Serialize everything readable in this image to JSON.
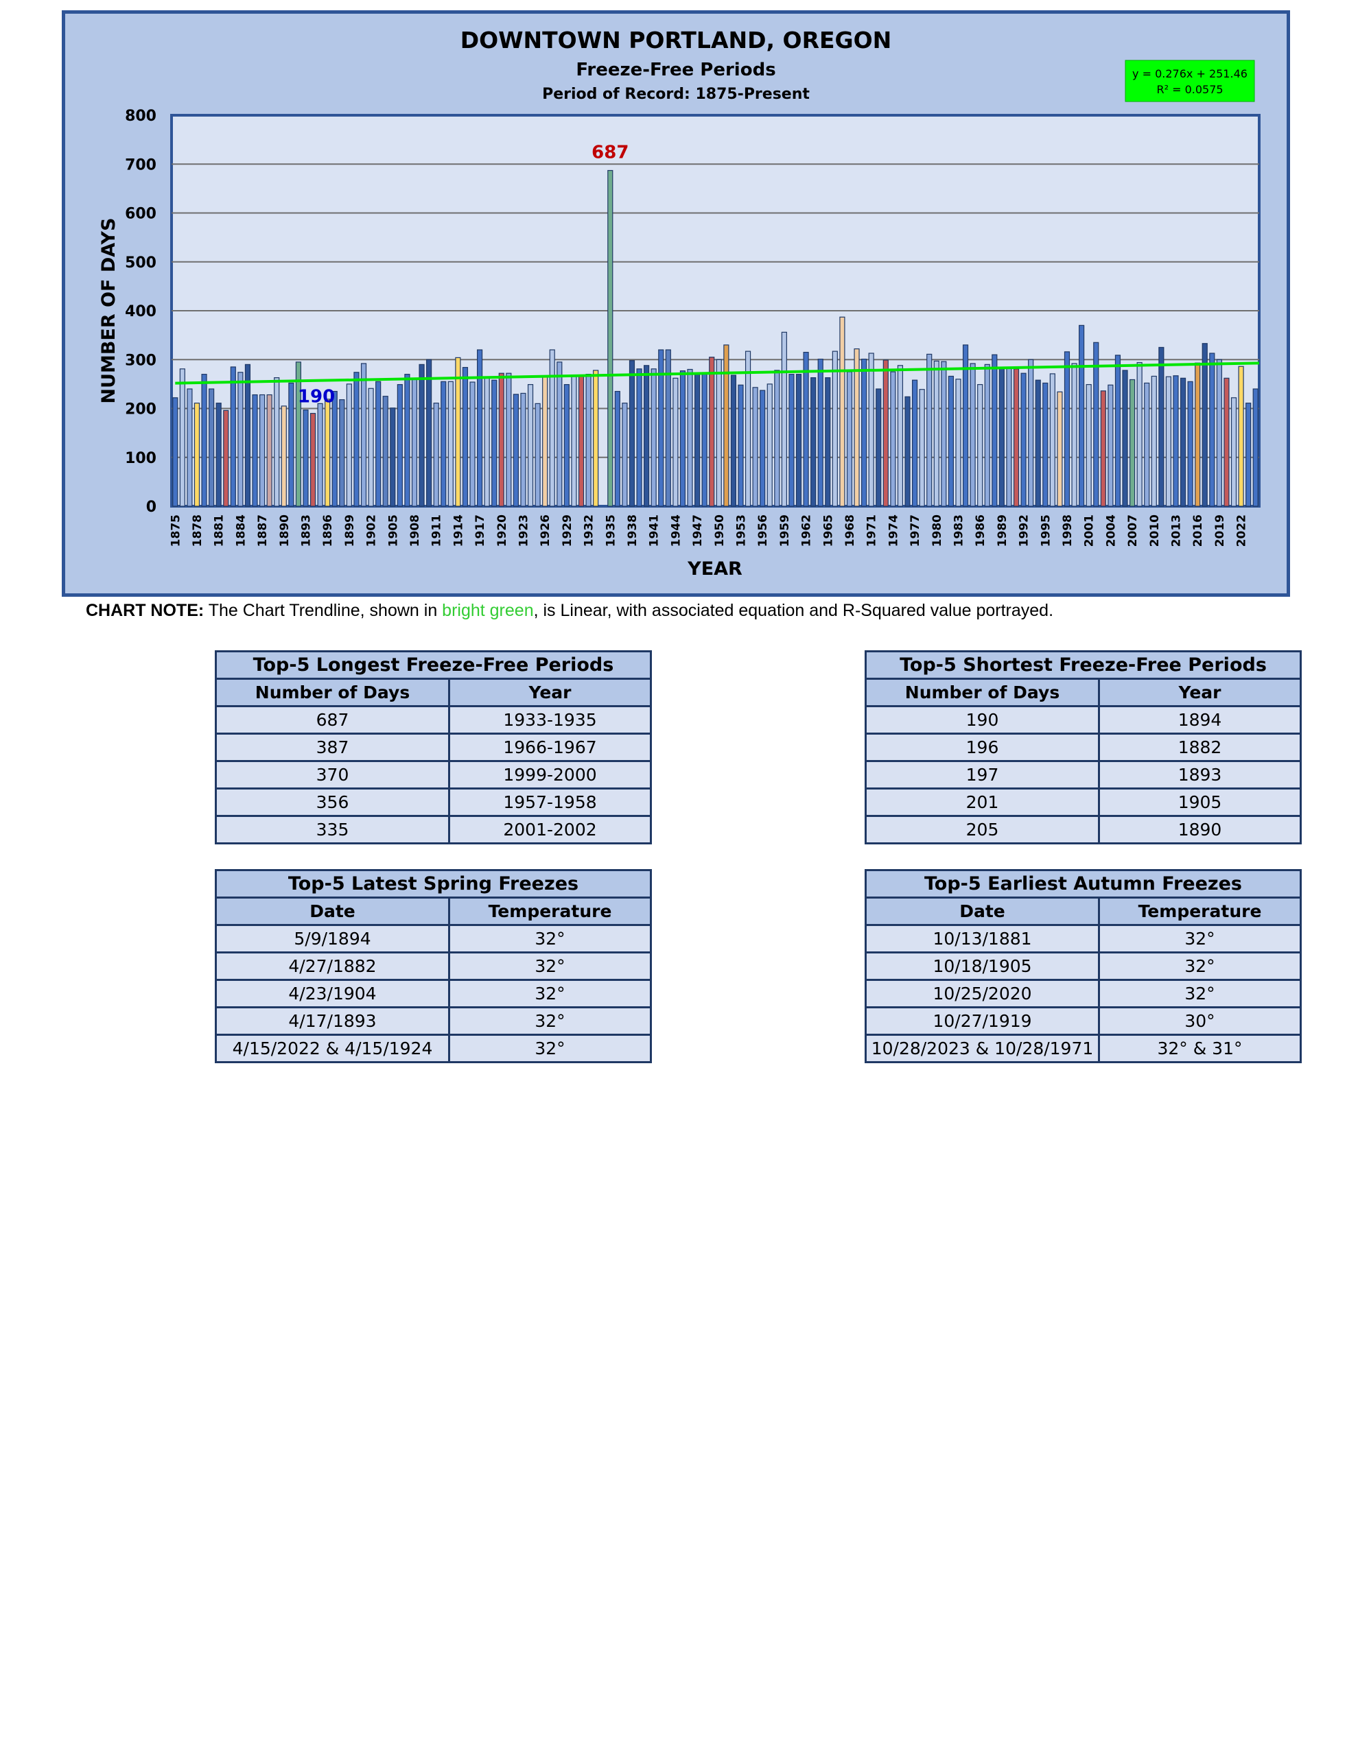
{
  "chart_data": {
    "type": "bar",
    "title": "DOWNTOWN PORTLAND, OREGON",
    "subtitle": "Freeze-Free Periods",
    "subtitle2": "Period of Record:  1875-Present",
    "xlabel": "YEAR",
    "ylabel": "NUMBER OF DAYS",
    "ylim": [
      0,
      800
    ],
    "yticks": [
      0,
      100,
      200,
      300,
      400,
      500,
      600,
      700,
      800
    ],
    "grid": true,
    "legend": "none",
    "x_start": 1875,
    "x_tick_labels": [
      "1875",
      "1878",
      "1881",
      "1884",
      "1887",
      "1890",
      "1893",
      "1896",
      "1899",
      "1902",
      "1905",
      "1908",
      "1911",
      "1914",
      "1917",
      "1920",
      "1923",
      "1926",
      "1929",
      "1932",
      "1935",
      "1938",
      "1941",
      "1944",
      "1947",
      "1950",
      "1953",
      "1956",
      "1959",
      "1962",
      "1965",
      "1968",
      "1971",
      "1974",
      "1977",
      "1980",
      "1983",
      "1986",
      "1989",
      "1992",
      "1995",
      "1998",
      "2001",
      "2004",
      "2007",
      "2010",
      "2013",
      "2016",
      "2019",
      "2022"
    ],
    "values": [
      222,
      281,
      240,
      211,
      270,
      240,
      211,
      196,
      285,
      274,
      290,
      228,
      228,
      228,
      263,
      205,
      252,
      295,
      197,
      190,
      210,
      219,
      235,
      218,
      250,
      274,
      292,
      241,
      255,
      225,
      201,
      249,
      270,
      260,
      290,
      300,
      211,
      255,
      255,
      304,
      284,
      254,
      320,
      262,
      258,
      272,
      272,
      229,
      231,
      249,
      210,
      264,
      320,
      295,
      249,
      268,
      268,
      270,
      278,
      0,
      687,
      235,
      211,
      298,
      281,
      288,
      281,
      320,
      320,
      262,
      277,
      280,
      273,
      273,
      305,
      300,
      330,
      268,
      248,
      317,
      243,
      237,
      250,
      278,
      356,
      270,
      270,
      315,
      263,
      301,
      263,
      317,
      387,
      275,
      322,
      301,
      313,
      240,
      299,
      275,
      288,
      224,
      258,
      239,
      311,
      297,
      296,
      266,
      260,
      330,
      292,
      249,
      290,
      310,
      283,
      283,
      281,
      272,
      300,
      258,
      252,
      271,
      234,
      316,
      292,
      370,
      249,
      335,
      236,
      248,
      309,
      278,
      259,
      294,
      252,
      266,
      325,
      265,
      267,
      262,
      255,
      293,
      333,
      313,
      300,
      262,
      222,
      286,
      211,
      240
    ],
    "bar_colors": [
      "#4472c4",
      "#b4c7e7",
      "#8faadc",
      "#ffd966",
      "#4472c4",
      "#5b7fbf",
      "#2f5597",
      "#c55a5a",
      "#4472c4",
      "#8faadc",
      "#2f5597",
      "#4472c4",
      "#8faadc",
      "#c9a5a5",
      "#b4c7e7",
      "#f2cfa5",
      "#4472c4",
      "#70ad8f",
      "#4472c4",
      "#c55a5a",
      "#8faadc",
      "#ffd966",
      "#4472c4",
      "#5b7fbf",
      "#b4c7e7",
      "#4472c4",
      "#8faadc",
      "#b4c7e7",
      "#4472c4",
      "#5b7fbf",
      "#2f5597",
      "#4472c4",
      "#4472c4",
      "#8faadc",
      "#2f5597",
      "#2f5597",
      "#8faadc",
      "#4472c4",
      "#b4c7e7",
      "#ffd966",
      "#4472c4",
      "#8faadc",
      "#4472c4",
      "#b4c7e7",
      "#4472c4",
      "#c55a5a",
      "#8faadc",
      "#4472c4",
      "#8faadc",
      "#b4c7e7",
      "#8faadc",
      "#f2cfa5",
      "#b4c7e7",
      "#8faadc",
      "#4472c4",
      "#b4c7e7",
      "#c55a5a",
      "#8faadc",
      "#ffd966",
      "#ffffff",
      "#70ad8f",
      "#4472c4",
      "#8faadc",
      "#2f5597",
      "#4472c4",
      "#2f5597",
      "#8faadc",
      "#4472c4",
      "#5b7fbf",
      "#b4c7e7",
      "#4472c4",
      "#8faadc",
      "#2f5597",
      "#4472c4",
      "#c55a5a",
      "#b4c7e7",
      "#e0a050",
      "#2f5597",
      "#4472c4",
      "#b4c7e7",
      "#8faadc",
      "#4472c4",
      "#b4c7e7",
      "#8faadc",
      "#b4c7e7",
      "#4472c4",
      "#2f5597",
      "#4472c4",
      "#2f5597",
      "#4472c4",
      "#2f5597",
      "#b4c7e7",
      "#f2cfa5",
      "#8faadc",
      "#f2cfa5",
      "#4472c4",
      "#b4c7e7",
      "#2f5597",
      "#c55a5a",
      "#8faadc",
      "#b4c7e7",
      "#2f5597",
      "#4472c4",
      "#b4c7e7",
      "#8faadc",
      "#b4c7e7",
      "#8faadc",
      "#4472c4",
      "#b4c7e7",
      "#4472c4",
      "#8faadc",
      "#b4c7e7",
      "#8faadc",
      "#4472c4",
      "#2f5597",
      "#8faadc",
      "#c55a5a",
      "#4472c4",
      "#8faadc",
      "#2f5597",
      "#4472c4",
      "#b4c7e7",
      "#f2cfa5",
      "#4472c4",
      "#b4c7e7",
      "#4472c4",
      "#b4c7e7",
      "#4472c4",
      "#c55a5a",
      "#8faadc",
      "#4472c4",
      "#2f5597",
      "#70ad8f",
      "#b4c7e7",
      "#8faadc",
      "#b4c7e7",
      "#2f5597",
      "#b4c7e7",
      "#4472c4",
      "#2f5597",
      "#4472c4",
      "#e0a050",
      "#2f5597",
      "#4472c4",
      "#8faadc",
      "#c55a5a",
      "#b4c7e7",
      "#ffd966",
      "#4472c4"
    ],
    "trendline": {
      "slope": 0.276,
      "intercept": 251.46,
      "color": "#00e600"
    },
    "trendline_equation": "y = 0.276x + 251.46",
    "r_squared": "R² = 0.0575",
    "annotations": [
      {
        "text": "687",
        "x_index": 60,
        "y": 687,
        "color": "#c00000"
      },
      {
        "text": "190",
        "x_index": 19,
        "y": 190,
        "color": "#0000cc"
      }
    ]
  },
  "note": {
    "label": "CHART NOTE:",
    "text_before": " The Chart Trendline, shown in ",
    "highlight": "bright green",
    "text_after": ", is Linear, with associated equation and R-Squared value portrayed."
  },
  "tables": {
    "longest": {
      "title": "Top-5 Longest Freeze-Free Periods",
      "headers": [
        "Number of Days",
        "Year"
      ],
      "rows": [
        [
          "687",
          "1933-1935"
        ],
        [
          "387",
          "1966-1967"
        ],
        [
          "370",
          "1999-2000"
        ],
        [
          "356",
          "1957-1958"
        ],
        [
          "335",
          "2001-2002"
        ]
      ]
    },
    "shortest": {
      "title": "Top-5 Shortest Freeze-Free Periods",
      "headers": [
        "Number of Days",
        "Year"
      ],
      "rows": [
        [
          "190",
          "1894"
        ],
        [
          "196",
          "1882"
        ],
        [
          "197",
          "1893"
        ],
        [
          "201",
          "1905"
        ],
        [
          "205",
          "1890"
        ]
      ]
    },
    "spring": {
      "title": "Top-5 Latest Spring Freezes",
      "headers": [
        "Date",
        "Temperature"
      ],
      "rows": [
        [
          "5/9/1894",
          "32°"
        ],
        [
          "4/27/1882",
          "32°"
        ],
        [
          "4/23/1904",
          "32°"
        ],
        [
          "4/17/1893",
          "32°"
        ],
        [
          "4/15/2022 & 4/15/1924",
          "32°"
        ]
      ]
    },
    "autumn": {
      "title": "Top-5 Earliest Autumn Freezes",
      "headers": [
        "Date",
        "Temperature"
      ],
      "rows": [
        [
          "10/13/1881",
          "32°"
        ],
        [
          "10/18/1905",
          "32°"
        ],
        [
          "10/25/2020",
          "32°"
        ],
        [
          "10/27/1919",
          "30°"
        ],
        [
          "10/28/2023 & 10/28/1971",
          "32° & 31°"
        ]
      ]
    }
  }
}
